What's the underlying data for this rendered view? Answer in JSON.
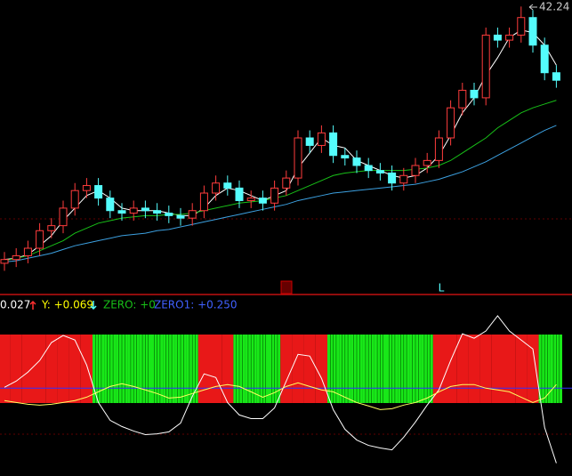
{
  "chart_data": [
    {
      "type": "candlestick",
      "open": [
        32.0,
        32.15,
        32.3,
        32.6,
        33.3,
        33.5,
        34.2,
        34.9,
        35.1,
        34.6,
        34.1,
        34.0,
        34.2,
        34.1,
        34.0,
        33.9,
        33.8,
        34.1,
        34.8,
        35.2,
        35.0,
        34.5,
        34.6,
        34.4,
        35.0,
        35.4,
        37.0,
        36.7,
        37.2,
        36.3,
        36.2,
        35.9,
        35.7,
        35.6,
        35.2,
        35.5,
        35.9,
        36.1,
        37.0,
        38.2,
        38.9,
        38.6,
        41.1,
        40.9,
        41.1,
        41.8,
        40.7,
        39.6
      ],
      "high": [
        32.45,
        32.6,
        32.9,
        33.6,
        33.8,
        34.5,
        35.2,
        35.4,
        35.4,
        34.9,
        34.4,
        34.5,
        34.5,
        34.4,
        34.3,
        34.2,
        34.4,
        35.1,
        35.5,
        35.5,
        35.3,
        34.9,
        34.9,
        35.3,
        35.7,
        37.3,
        37.3,
        37.5,
        37.5,
        36.6,
        36.5,
        36.2,
        36.0,
        35.9,
        35.8,
        36.2,
        36.4,
        37.3,
        38.5,
        39.2,
        39.2,
        41.4,
        41.4,
        41.4,
        42.24,
        42.1,
        41.0,
        39.9
      ],
      "low": [
        31.7,
        31.85,
        32.0,
        32.3,
        33.0,
        33.2,
        33.9,
        34.6,
        34.3,
        33.8,
        33.7,
        33.7,
        33.8,
        33.7,
        33.6,
        33.5,
        33.5,
        33.8,
        34.5,
        34.7,
        34.2,
        34.2,
        34.1,
        34.1,
        34.7,
        35.1,
        36.4,
        36.4,
        36.0,
        35.9,
        35.6,
        35.4,
        35.3,
        34.9,
        34.9,
        35.2,
        35.6,
        35.8,
        36.7,
        37.9,
        38.3,
        38.3,
        40.6,
        40.6,
        40.8,
        40.4,
        39.3,
        39.0
      ],
      "close": [
        32.15,
        32.3,
        32.6,
        33.3,
        33.5,
        34.2,
        34.9,
        35.1,
        34.6,
        34.1,
        34.0,
        34.2,
        34.1,
        34.0,
        33.9,
        33.8,
        34.1,
        34.8,
        35.2,
        35.0,
        34.5,
        34.6,
        34.4,
        35.0,
        35.4,
        37.0,
        36.7,
        37.2,
        36.3,
        36.2,
        35.9,
        35.7,
        35.6,
        35.2,
        35.5,
        35.9,
        36.1,
        37.0,
        38.2,
        38.9,
        38.6,
        41.1,
        40.9,
        41.1,
        41.8,
        40.7,
        39.6,
        39.3
      ],
      "up_color": "#ff3c3c",
      "down_color": "#54fcfc",
      "lines": [
        {
          "color": "#ffffff",
          "values": [
            32.15,
            32.2,
            32.35,
            32.7,
            33.1,
            33.7,
            34.2,
            34.7,
            34.9,
            34.6,
            34.2,
            34.1,
            34.1,
            34.1,
            34.0,
            33.9,
            33.9,
            34.2,
            34.7,
            35.0,
            34.9,
            34.7,
            34.5,
            34.7,
            34.9,
            35.8,
            36.4,
            37.0,
            36.7,
            36.6,
            36.1,
            35.9,
            35.7,
            35.5,
            35.4,
            35.5,
            35.8,
            36.3,
            37.1,
            38.0,
            38.6,
            39.5,
            40.2,
            41.0,
            41.3,
            41.2,
            40.7,
            39.9
          ]
        },
        {
          "color": "#18c018",
          "values": [
            32.1,
            32.2,
            32.3,
            32.5,
            32.7,
            32.9,
            33.2,
            33.4,
            33.6,
            33.7,
            33.8,
            33.85,
            33.9,
            33.9,
            33.95,
            33.95,
            34.0,
            34.1,
            34.2,
            34.3,
            34.4,
            34.45,
            34.5,
            34.6,
            34.7,
            34.9,
            35.1,
            35.3,
            35.5,
            35.6,
            35.65,
            35.7,
            35.7,
            35.7,
            35.7,
            35.75,
            35.8,
            35.9,
            36.1,
            36.4,
            36.7,
            37.0,
            37.4,
            37.7,
            38.0,
            38.2,
            38.35,
            38.5
          ]
        },
        {
          "color": "#3ca0e0",
          "values": [
            32.05,
            32.1,
            32.2,
            32.3,
            32.4,
            32.55,
            32.7,
            32.8,
            32.9,
            33.0,
            33.1,
            33.15,
            33.2,
            33.3,
            33.35,
            33.45,
            33.55,
            33.65,
            33.75,
            33.85,
            33.95,
            34.05,
            34.15,
            34.25,
            34.35,
            34.5,
            34.6,
            34.7,
            34.8,
            34.85,
            34.9,
            34.95,
            35.0,
            35.05,
            35.1,
            35.15,
            35.25,
            35.35,
            35.5,
            35.65,
            35.85,
            36.05,
            36.3,
            36.55,
            36.8,
            37.05,
            37.3,
            37.5
          ]
        }
      ],
      "ylim": [
        31.5,
        42.5
      ],
      "markers": [
        "张",
        "L"
      ]
    },
    {
      "type": "indicator",
      "legend": [
        {
          "text": "0.027",
          "color": "#ffffff"
        },
        {
          "text": "Y: +0.069",
          "color": "#ffff00"
        },
        {
          "text": "ZERO: +0",
          "color": "#18c018"
        },
        {
          "text": "ZERO1: +0.250",
          "color": "#4060ff"
        }
      ],
      "series": [
        {
          "color": "#ffffff",
          "values": [
            0.004,
            0.033,
            0.075,
            0.129,
            0.213,
            0.246,
            0.225,
            0.108,
            -0.067,
            -0.15,
            -0.179,
            -0.2,
            -0.217,
            -0.213,
            -0.204,
            -0.163,
            -0.038,
            0.067,
            0.05,
            -0.067,
            -0.125,
            -0.142,
            -0.142,
            -0.092,
            0.033,
            0.158,
            0.15,
            0.046,
            -0.1,
            -0.192,
            -0.242,
            -0.267,
            -0.279,
            -0.288,
            -0.229,
            -0.158,
            -0.079,
            -0.008,
            0.129,
            0.254,
            0.233,
            0.267,
            0.338,
            0.267,
            0.225,
            0.183,
            -0.183,
            -0.35
          ]
        },
        {
          "color": "#ffff60",
          "values": [
            -0.058,
            -0.067,
            -0.075,
            -0.079,
            -0.075,
            -0.067,
            -0.058,
            -0.042,
            -0.017,
            0.008,
            0.021,
            0.008,
            -0.008,
            -0.025,
            -0.046,
            -0.042,
            -0.025,
            -0.008,
            0.008,
            0.017,
            0.008,
            -0.017,
            -0.042,
            -0.021,
            0.008,
            0.025,
            0.008,
            -0.008,
            -0.017,
            -0.042,
            -0.067,
            -0.083,
            -0.1,
            -0.096,
            -0.079,
            -0.067,
            -0.046,
            -0.017,
            0.008,
            0.017,
            0.017,
            0.0,
            -0.008,
            -0.017,
            -0.042,
            -0.067,
            -0.046,
            0.017
          ]
        }
      ],
      "signal": [
        1,
        1,
        1,
        1,
        1,
        1,
        1,
        1,
        -1,
        -1,
        -1,
        -1,
        -1,
        -1,
        -1,
        -1,
        -1,
        1,
        1,
        1,
        -1,
        -1,
        -1,
        -1,
        1,
        1,
        1,
        1,
        -1,
        -1,
        -1,
        -1,
        -1,
        -1,
        -1,
        -1,
        -1,
        1,
        1,
        1,
        1,
        1,
        1,
        1,
        1,
        1,
        -1,
        -1
      ],
      "up_color": "#e81818",
      "down_color": "#18e818",
      "zero_color": "#3030ff",
      "ylim": [
        -0.41,
        0.4
      ]
    }
  ]
}
